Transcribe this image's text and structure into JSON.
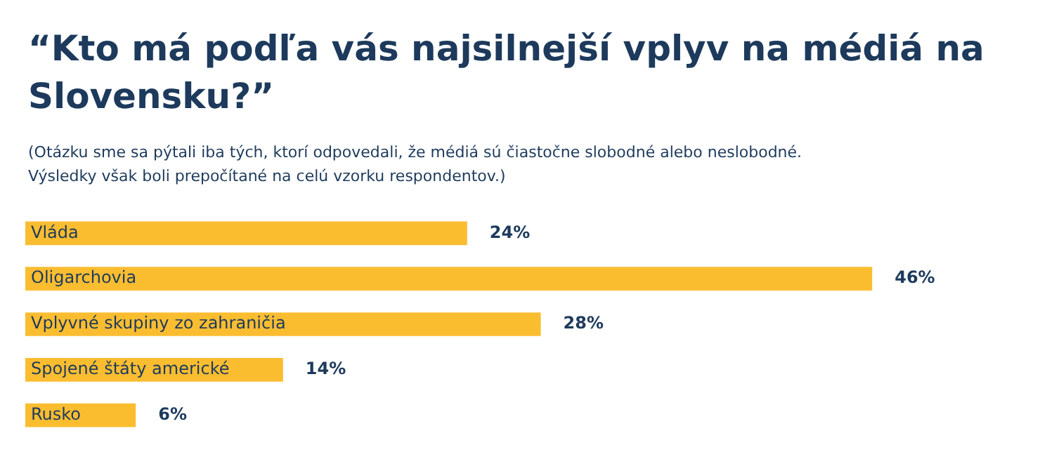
{
  "chart_data": {
    "type": "bar",
    "orientation": "horizontal",
    "title": "“Kto má podľa vás najsilnejší vplyv na médiá na Slovensku?”",
    "subtitle": "(Otázku sme sa pýtali iba tých, ktorí odpovedali, že médiá sú čiastočne slobodné alebo neslobodné.\nVýsledky však boli prepočítané na celú vzorku respondentov.)",
    "categories": [
      "Vláda",
      "Oligarchovia",
      "Vplyvné skupiny zo zahraničia",
      "Spojené štáty americké",
      "Rusko"
    ],
    "values": [
      24,
      46,
      28,
      14,
      6
    ],
    "value_labels": [
      "24%",
      "46%",
      "28%",
      "14%",
      "6%"
    ],
    "color": "#fbbd30",
    "legend": false
  }
}
